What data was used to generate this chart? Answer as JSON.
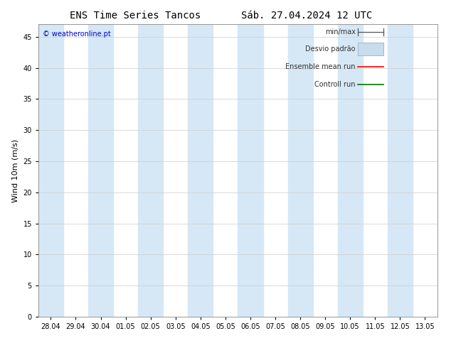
{
  "title_left": "ENS Time Series Tancos",
  "title_right": "Sáb. 27.04.2024 12 UTC",
  "watermark": "© weatheronline.pt",
  "ylabel": "Wind 10m (m/s)",
  "ylim": [
    0,
    47
  ],
  "yticks": [
    0,
    5,
    10,
    15,
    20,
    25,
    30,
    35,
    40,
    45
  ],
  "x_labels": [
    "28.04",
    "29.04",
    "30.04",
    "01.05",
    "02.05",
    "03.05",
    "04.05",
    "05.05",
    "06.05",
    "07.05",
    "08.05",
    "09.05",
    "10.05",
    "11.05",
    "12.05",
    "13.05"
  ],
  "shaded_indices": [
    0,
    2,
    4,
    6,
    8,
    10,
    12,
    14
  ],
  "shaded_color": "#d6e8f5",
  "background_color": "#ffffff",
  "plot_bg_color": "#ffffff",
  "minmax_color": "#555555",
  "std_fill_color": "#c8dced",
  "std_edge_color": "#a0b8cc",
  "mean_color": "#ff0000",
  "control_color": "#007700",
  "title_fontsize": 10,
  "label_fontsize": 8,
  "tick_fontsize": 7,
  "watermark_color": "#0000cc",
  "watermark_fontsize": 7,
  "legend_text_color": "#333333",
  "legend_fontsize": 7
}
